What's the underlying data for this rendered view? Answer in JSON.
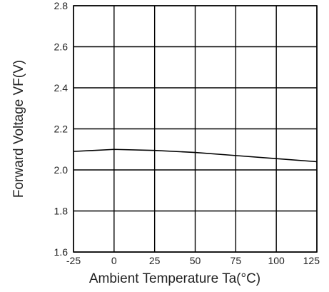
{
  "chart_data": {
    "type": "line",
    "title": "",
    "xlabel": "Ambient Temperature Ta(°C)",
    "ylabel": "Forward Voltage VF(V)",
    "xlim": [
      -25,
      125
    ],
    "ylim": [
      1.6,
      2.8
    ],
    "x_ticks": [
      -25,
      0,
      25,
      50,
      75,
      100,
      125
    ],
    "x_tick_labels": [
      "-25",
      "0",
      "25",
      "50",
      "75",
      "100",
      "125"
    ],
    "y_ticks": [
      1.6,
      1.8,
      2.0,
      2.2,
      2.4,
      2.6,
      2.8
    ],
    "y_tick_labels": [
      "1.6",
      "1.8",
      "2.0",
      "2.2",
      "2.4",
      "2.6",
      "2.8"
    ],
    "grid": true,
    "legend": "none",
    "series": [
      {
        "x": [
          -25,
          0,
          25,
          50,
          75,
          100,
          125
        ],
        "y": [
          2.09,
          2.1,
          2.095,
          2.085,
          2.07,
          2.055,
          2.04
        ]
      }
    ],
    "colors": {
      "line": "#000000",
      "grid": "#000000"
    }
  }
}
